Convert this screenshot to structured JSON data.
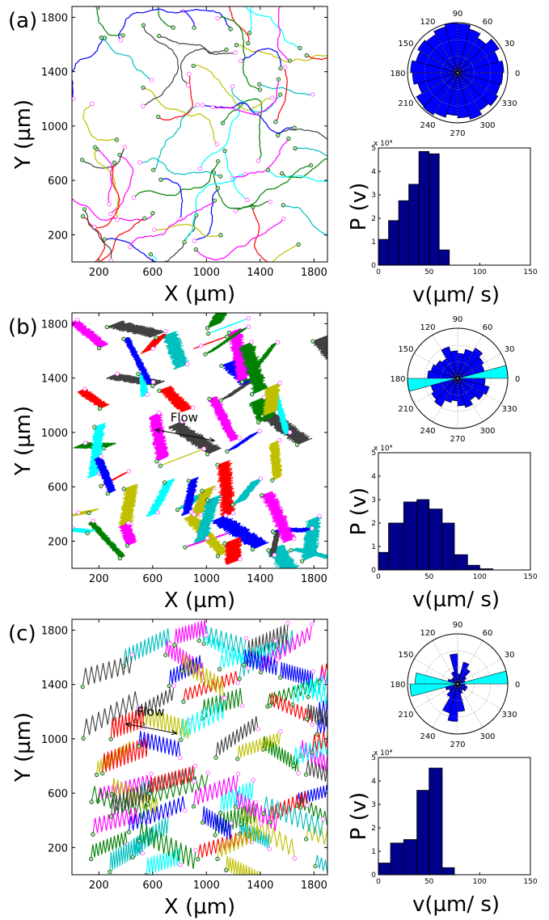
{
  "colors": {
    "bar_blue": "#00008b",
    "rose_blue": "#0000ff",
    "rose_cyan": "#00ffff",
    "start_marker": "#90ee90",
    "end_marker": "#ff66ff",
    "track_palette": [
      "#ff0000",
      "#0000ff",
      "#008000",
      "#ff00ff",
      "#00bfbf",
      "#bfbf00",
      "#404040",
      "#00ffff"
    ]
  },
  "chart_data": [
    {
      "type": "scatter",
      "panel_label": "(a)",
      "description": "trajectories",
      "xlabel": "X (µm)",
      "ylabel": "Y (µm)",
      "xlim": [
        0,
        1900
      ],
      "ylim": [
        0,
        1880
      ],
      "xticks": [
        200,
        600,
        1000,
        1400,
        1800
      ],
      "yticks": [
        200,
        600,
        1000,
        1400,
        1800
      ],
      "track_count": 60,
      "track_style": "random"
    },
    {
      "type": "bar",
      "subtype": "polar",
      "angle_ticks": [
        90,
        60,
        30,
        0,
        330,
        300,
        270,
        240,
        210,
        180,
        150,
        120
      ],
      "bin_width_deg": 15,
      "values": [
        0.92,
        0.85,
        0.95,
        0.8,
        0.9,
        0.98,
        1.0,
        0.95,
        0.88,
        0.92,
        0.86,
        0.94,
        0.9,
        0.82,
        0.95,
        0.97,
        0.92,
        0.85,
        0.9,
        0.96,
        0.87,
        0.93,
        0.88,
        0.9
      ],
      "highlight_bins": []
    },
    {
      "type": "bar",
      "ylabel": "P (v)",
      "xlabel": "v(µm/ s)",
      "xlim": [
        0,
        150
      ],
      "ylim": [
        0,
        5
      ],
      "y_scale_label": "x 10⁴",
      "xticks": [
        0,
        50,
        100,
        150
      ],
      "yticks": [
        0,
        1,
        2,
        3,
        4,
        5
      ],
      "bins": [
        [
          0,
          10
        ],
        [
          10,
          20
        ],
        [
          20,
          30
        ],
        [
          30,
          40
        ],
        [
          40,
          50
        ],
        [
          50,
          60
        ],
        [
          60,
          70
        ],
        [
          70,
          80
        ]
      ],
      "values": [
        1.1,
        1.9,
        2.75,
        3.45,
        4.85,
        4.75,
        0.65,
        0.0
      ]
    },
    {
      "type": "scatter",
      "panel_label": "(b)",
      "description": "trajectories",
      "xlabel": "X (µm)",
      "ylabel": "Y (µm)",
      "xlim": [
        0,
        1900
      ],
      "ylim": [
        0,
        1880
      ],
      "xticks": [
        200,
        600,
        1000,
        1400,
        1800
      ],
      "yticks": [
        200,
        600,
        1000,
        1400,
        1800
      ],
      "track_count": 55,
      "track_style": "zigzag-short",
      "flow_label": "Flow"
    },
    {
      "type": "bar",
      "subtype": "polar",
      "angle_ticks": [
        90,
        60,
        30,
        0,
        330,
        300,
        270,
        240,
        210,
        180,
        150,
        120
      ],
      "bin_width_deg": 15,
      "values": [
        1.0,
        0.55,
        0.6,
        0.7,
        0.6,
        0.5,
        0.55,
        0.65,
        0.45,
        0.5,
        0.55,
        0.6,
        1.0,
        0.55,
        0.6,
        0.65,
        0.5,
        0.45,
        0.55,
        0.6,
        0.5,
        0.6,
        0.65,
        0.55
      ],
      "highlight_bins": [
        0,
        12
      ]
    },
    {
      "type": "bar",
      "ylabel": "P (v)",
      "xlabel": "v(µm/ s)",
      "xlim": [
        0,
        150
      ],
      "ylim": [
        0,
        5
      ],
      "y_scale_label": "x 10⁴",
      "xticks": [
        0,
        50,
        100,
        150
      ],
      "yticks": [
        0,
        1,
        2,
        3,
        4,
        5
      ],
      "bins": [
        [
          0,
          10
        ],
        [
          10,
          25
        ],
        [
          25,
          38
        ],
        [
          38,
          50
        ],
        [
          50,
          63
        ],
        [
          63,
          75
        ],
        [
          75,
          88
        ],
        [
          88,
          100
        ],
        [
          100,
          113
        ],
        [
          113,
          125
        ]
      ],
      "values": [
        0.75,
        2.0,
        2.9,
        3.0,
        2.6,
        2.0,
        0.65,
        0.2,
        0.05,
        0.0
      ]
    },
    {
      "type": "scatter",
      "panel_label": "(c)",
      "description": "trajectories",
      "xlabel": "X (µm)",
      "ylabel": "Y (µm)",
      "xlim": [
        0,
        1900
      ],
      "ylim": [
        0,
        1880
      ],
      "xticks": [
        200,
        600,
        1000,
        1400,
        1800
      ],
      "yticks": [
        200,
        600,
        1000,
        1400,
        1800
      ],
      "track_count": 70,
      "track_style": "zigzag-long",
      "flow_label": "Flow"
    },
    {
      "type": "bar",
      "subtype": "polar",
      "angle_ticks": [
        90,
        60,
        30,
        0,
        330,
        300,
        270,
        240,
        210,
        180,
        150,
        120
      ],
      "bin_width_deg": 15,
      "values": [
        1.0,
        0.15,
        0.2,
        0.35,
        0.45,
        0.2,
        0.6,
        0.25,
        0.15,
        0.15,
        0.2,
        0.85,
        0.95,
        0.25,
        0.2,
        0.3,
        0.6,
        0.75,
        0.55,
        0.2,
        0.15,
        0.2,
        0.2,
        0.15
      ],
      "highlight_bins": [
        0,
        11,
        12
      ]
    },
    {
      "type": "bar",
      "ylabel": "P (v)",
      "xlabel": "v(µm/ s)",
      "xlim": [
        0,
        150
      ],
      "ylim": [
        0,
        5
      ],
      "y_scale_label": "x 10⁴",
      "xticks": [
        0,
        50,
        100,
        150
      ],
      "yticks": [
        0,
        1,
        2,
        3,
        4,
        5
      ],
      "bins": [
        [
          0,
          12
        ],
        [
          12,
          25
        ],
        [
          25,
          38
        ],
        [
          38,
          50
        ],
        [
          50,
          63
        ],
        [
          63,
          75
        ],
        [
          75,
          88
        ]
      ],
      "values": [
        0.5,
        1.35,
        1.5,
        3.6,
        4.55,
        0.3,
        0.0
      ]
    }
  ]
}
